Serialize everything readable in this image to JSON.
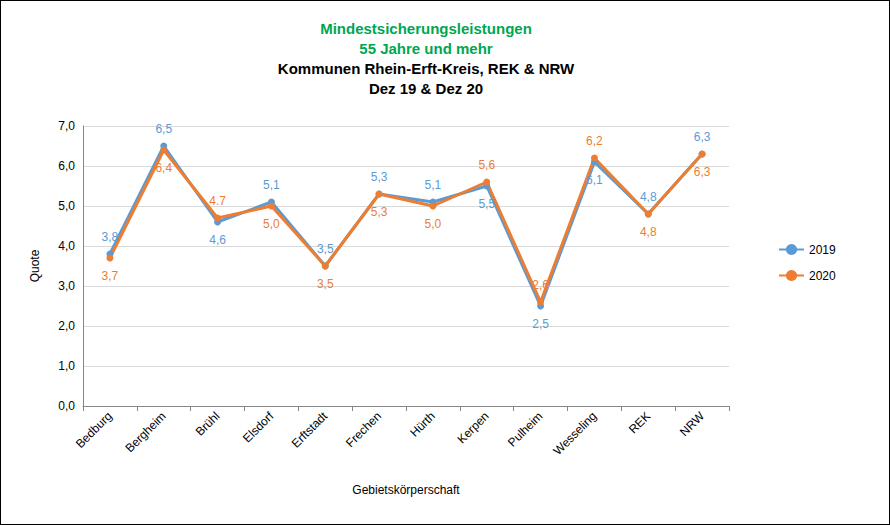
{
  "chart_data": {
    "type": "line",
    "title": "Mindestsicherungsleistungen\n55 Jahre und mehr",
    "subtitle": "Kommunen Rhein-Erft-Kreis, REK & NRW\nDez 19 & Dez 20",
    "x_label": "Gebietskörperschaft",
    "y_label": "Quote",
    "categories": [
      "Bedburg",
      "Bergheim",
      "Brühl",
      "Elsdorf",
      "Erftstadt",
      "Frechen",
      "Hürth",
      "Kerpen",
      "Pulheim",
      "Wesseling",
      "REK",
      "NRW"
    ],
    "series": [
      {
        "name": "2019",
        "color": "#5b9bd5",
        "marker": "circle",
        "values": [
          3.8,
          6.5,
          4.6,
          5.1,
          3.5,
          5.3,
          5.1,
          5.5,
          2.5,
          6.1,
          4.8,
          6.3
        ],
        "value_labels": [
          "3,8",
          "6,5",
          "4,6",
          "5,1",
          "3,5",
          "5,3",
          "5,1",
          "5,5",
          "2,5",
          "6,1",
          "4,8",
          "6,3"
        ]
      },
      {
        "name": "2020",
        "color": "#ed7d31",
        "marker": "circle",
        "values": [
          3.7,
          6.4,
          4.7,
          5.0,
          3.5,
          5.3,
          5.0,
          5.6,
          2.6,
          6.2,
          4.8,
          6.3
        ],
        "value_labels": [
          "3,7",
          "6,4",
          "4.7",
          "5,0",
          "3,5",
          "5,3",
          "5,0",
          "5,6",
          "2,6",
          "6,2",
          "4,8",
          "6,3"
        ]
      }
    ],
    "ylim": [
      0,
      7
    ],
    "yticks": [
      {
        "value": 0,
        "label": "0,0"
      },
      {
        "value": 1,
        "label": "1,0"
      },
      {
        "value": 2,
        "label": "2,0"
      },
      {
        "value": 3,
        "label": "3,0"
      },
      {
        "value": 4,
        "label": "4,0"
      },
      {
        "value": 5,
        "label": "5,0"
      },
      {
        "value": 6,
        "label": "6,0"
      },
      {
        "value": 7,
        "label": "7,0"
      }
    ],
    "grid": true,
    "legend": "right",
    "data_labels": true
  }
}
